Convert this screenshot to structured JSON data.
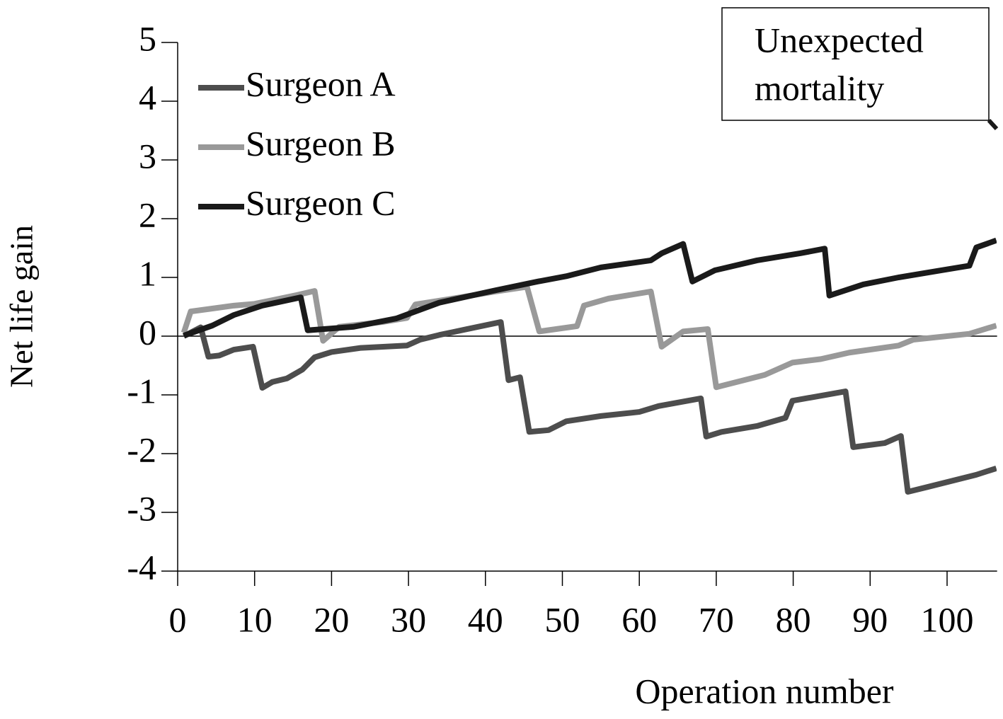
{
  "chart_data": {
    "type": "line",
    "xlabel": "Operation number",
    "ylabel": "Net life gain",
    "annotation": [
      "Unexpected",
      "mortality"
    ],
    "xlim": [
      0,
      106.5
    ],
    "ylim": [
      -4,
      5
    ],
    "xticks": [
      0,
      10,
      20,
      30,
      40,
      50,
      60,
      70,
      80,
      90,
      100
    ],
    "yticks": [
      -4,
      -3,
      -2,
      -1,
      0,
      1,
      2,
      3,
      4,
      5
    ],
    "grid": false,
    "legend": "upper left",
    "series": [
      {
        "name": "Surgeon A",
        "color": "#4d4d4d",
        "x": [
          0.8,
          3,
          4,
          5.4,
          7.3,
          9.8,
          11,
          12.3,
          14.2,
          16.2,
          17.8,
          20,
          23.8,
          29.8,
          31.5,
          34,
          37.6,
          42,
          43,
          44.5,
          45.7,
          48.2,
          50.5,
          55,
          60,
          62.5,
          68,
          68.7,
          70.7,
          75.3,
          79,
          79.9,
          86.8,
          87.8,
          91.9,
          94,
          94.9,
          97.4,
          103.8,
          106.4
        ],
        "values": [
          0,
          0.15,
          -0.35,
          -0.33,
          -0.23,
          -0.18,
          -0.88,
          -0.78,
          -0.72,
          -0.57,
          -0.36,
          -0.27,
          -0.2,
          -0.16,
          -0.06,
          0.02,
          0.12,
          0.24,
          -0.75,
          -0.7,
          -1.63,
          -1.6,
          -1.45,
          -1.36,
          -1.29,
          -1.19,
          -1.06,
          -1.71,
          -1.63,
          -1.53,
          -1.39,
          -1.1,
          -0.94,
          -1.89,
          -1.82,
          -1.7,
          -2.65,
          -2.57,
          -2.36,
          -2.25
        ]
      },
      {
        "name": "Surgeon B",
        "color": "#999999",
        "x": [
          0.8,
          1.7,
          4.5,
          7.3,
          10,
          15.5,
          17.8,
          18.9,
          21,
          26.6,
          29.8,
          30.9,
          36.7,
          41.3,
          45.4,
          47,
          51.9,
          52.8,
          56,
          61.5,
          62.9,
          65.7,
          68.9,
          70,
          76.3,
          79.9,
          83.6,
          87.3,
          93.7,
          95.6,
          102.9,
          106.4
        ],
        "values": [
          0.06,
          0.42,
          0.47,
          0.52,
          0.55,
          0.7,
          0.77,
          -0.08,
          0.16,
          0.24,
          0.31,
          0.54,
          0.66,
          0.76,
          0.84,
          0.08,
          0.17,
          0.52,
          0.64,
          0.76,
          -0.18,
          0.08,
          0.12,
          -0.87,
          -0.66,
          -0.45,
          -0.39,
          -0.28,
          -0.16,
          -0.06,
          0.04,
          0.18
        ]
      },
      {
        "name": "Surgeon C",
        "color": "#1a1a1a",
        "x": [
          0.8,
          4.5,
          7.3,
          11,
          16,
          16.9,
          22.9,
          28.4,
          34,
          41.3,
          46.8,
          50.5,
          55,
          61.5,
          62.9,
          65.7,
          66.9,
          69.8,
          75.3,
          80.9,
          84.1,
          84.7,
          89.1,
          93.7,
          99.2,
          102.9,
          103.8,
          106.4
        ],
        "values": [
          0.01,
          0.18,
          0.36,
          0.52,
          0.66,
          0.1,
          0.16,
          0.3,
          0.57,
          0.78,
          0.93,
          1.02,
          1.17,
          1.29,
          1.41,
          1.57,
          0.93,
          1.12,
          1.29,
          1.41,
          1.49,
          0.69,
          0.88,
          1.0,
          1.12,
          1.2,
          1.51,
          1.63
        ]
      }
    ]
  }
}
